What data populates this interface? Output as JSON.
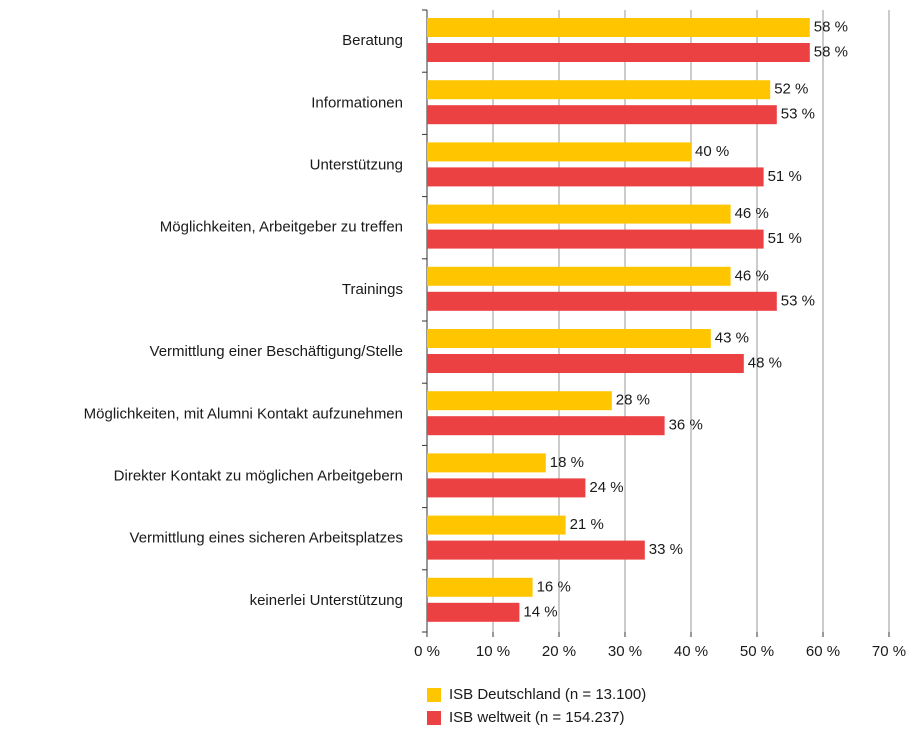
{
  "chart_data": {
    "type": "bar",
    "orientation": "horizontal",
    "categories": [
      "Beratung",
      "Informationen",
      "Unterstützung",
      "Möglichkeiten, Arbeitgeber zu treffen",
      "Trainings",
      "Vermittlung einer Beschäftigung/Stelle",
      "Möglichkeiten, mit Alumni Kontakt aufzunehmen",
      "Direkter Kontakt zu möglichen Arbeitgebern",
      "Vermittlung eines sicheren Arbeitsplatzes",
      "keinerlei Unterstützung"
    ],
    "series": [
      {
        "name": "ISB Deutschland (n = 13.100)",
        "color": "#ffc600",
        "values": [
          58,
          52,
          40,
          46,
          46,
          43,
          28,
          18,
          21,
          16
        ],
        "value_labels": [
          "58 %",
          "52 %",
          "40 %",
          "46 %",
          "46 %",
          "43 %",
          "28 %",
          "18 %",
          "21 %",
          "16 %"
        ]
      },
      {
        "name": "ISB weltweit (n = 154.237)",
        "color": "#ec4143",
        "values": [
          58,
          53,
          51,
          51,
          53,
          48,
          36,
          24,
          33,
          14
        ],
        "value_labels": [
          "58 %",
          "53 %",
          "51 %",
          "51 %",
          "53 %",
          "48 %",
          "36 %",
          "24 %",
          "33 %",
          "14 %"
        ]
      }
    ],
    "xlim": [
      0,
      70
    ],
    "xticks": [
      {
        "value": 0,
        "label": "0 %"
      },
      {
        "value": 10,
        "label": "10 %"
      },
      {
        "value": 20,
        "label": "20 %"
      },
      {
        "value": 30,
        "label": "30 %"
      },
      {
        "value": 40,
        "label": "40 %"
      },
      {
        "value": 50,
        "label": "50 %"
      },
      {
        "value": 60,
        "label": "60 %"
      },
      {
        "value": 70,
        "label": "70 %"
      }
    ],
    "grid": true,
    "legend": "bottom"
  }
}
